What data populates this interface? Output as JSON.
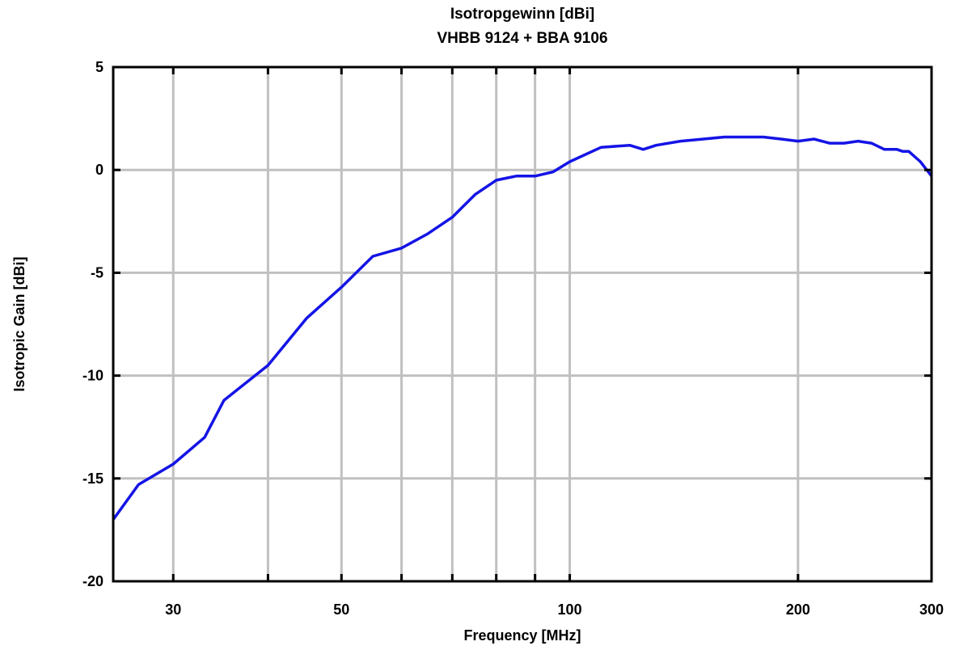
{
  "chart_data": {
    "type": "line",
    "title": "Isotropgewinn [dBi]",
    "subtitle": "VHBB 9124 + BBA 9106",
    "xlabel": "Frequency [MHz]",
    "ylabel": "Isotropic Gain [dBi]",
    "x_scale": "log",
    "xlim": [
      25,
      300
    ],
    "ylim": [
      -20,
      5
    ],
    "x_ticks": [
      30,
      50,
      100,
      200,
      300
    ],
    "x_tick_labels": [
      "30",
      "50",
      "100",
      "200",
      "300"
    ],
    "x_grid": [
      30,
      40,
      50,
      60,
      70,
      80,
      90,
      100,
      200
    ],
    "y_ticks": [
      -20,
      -15,
      -10,
      -5,
      0,
      5
    ],
    "y_tick_labels": [
      "-20",
      "-15",
      "-10",
      "-5",
      "0",
      "5"
    ],
    "grid": true,
    "colors": {
      "line": "#1414e6",
      "grid": "#c0c0c0",
      "frame": "#000000"
    },
    "series": [
      {
        "x": [
          25,
          27,
          30,
          33,
          35,
          40,
          45,
          50,
          55,
          60,
          65,
          70,
          75,
          80,
          85,
          90,
          95,
          100,
          110,
          120,
          125,
          130,
          140,
          150,
          160,
          170,
          180,
          190,
          200,
          210,
          220,
          230,
          240,
          250,
          260,
          270,
          275,
          280,
          290,
          300
        ],
        "y": [
          -17.0,
          -15.3,
          -14.3,
          -13.0,
          -11.2,
          -9.5,
          -7.2,
          -5.7,
          -4.2,
          -3.8,
          -3.1,
          -2.3,
          -1.2,
          -0.5,
          -0.3,
          -0.3,
          -0.1,
          0.4,
          1.1,
          1.2,
          1.0,
          1.2,
          1.4,
          1.5,
          1.6,
          1.6,
          1.6,
          1.5,
          1.4,
          1.5,
          1.3,
          1.3,
          1.4,
          1.3,
          1.0,
          1.0,
          0.9,
          0.9,
          0.4,
          -0.3
        ]
      }
    ]
  }
}
